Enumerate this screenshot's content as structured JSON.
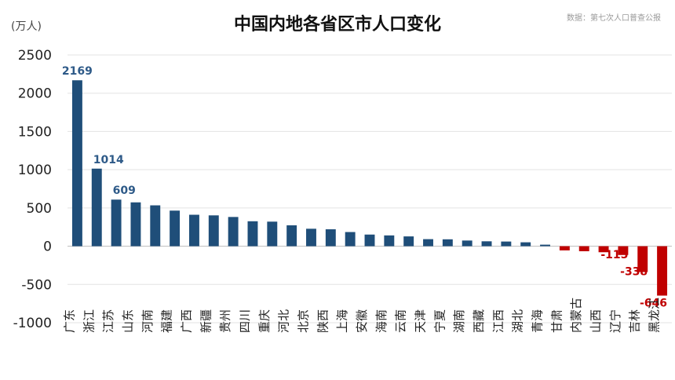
{
  "chart_data": {
    "type": "bar",
    "title": "中国内地各省区市人口变化",
    "source": "数据：第七次人口普查公报",
    "yunit": "(万人)",
    "ylim": [
      -1000,
      2500
    ],
    "yticks": [
      2500,
      2000,
      1500,
      1000,
      500,
      0,
      -500,
      -1000
    ],
    "grid": true,
    "colors": {
      "positive": "#1f4e79",
      "negative": "#c00000",
      "positive_label": "#2e5a88",
      "negative_label": "#c00000"
    },
    "categories": [
      "广东",
      "浙江",
      "江苏",
      "山东",
      "河南",
      "福建",
      "广西",
      "新疆",
      "贵州",
      "四川",
      "重庆",
      "河北",
      "北京",
      "陕西",
      "上海",
      "安徽",
      "海南",
      "云南",
      "天津",
      "宁夏",
      "湖南",
      "西藏",
      "江西",
      "湖北",
      "青海",
      "甘肃",
      "内蒙古",
      "山西",
      "辽宁",
      "吉林",
      "黑龙江"
    ],
    "values": [
      2169,
      1014,
      609,
      573,
      534,
      465,
      411,
      403,
      382,
      326,
      321,
      273,
      228,
      221,
      185,
      152,
      141,
      128,
      92,
      90,
      74,
      64,
      61,
      51,
      20,
      -55,
      -66,
      -79,
      -115,
      -338,
      -646
    ],
    "data_labels": [
      {
        "category": "广东",
        "text": "2169"
      },
      {
        "category": "浙江",
        "text": "1014"
      },
      {
        "category": "江苏",
        "text": "609"
      },
      {
        "category": "辽宁",
        "text": "-115"
      },
      {
        "category": "吉林",
        "text": "-338"
      },
      {
        "category": "黑龙江",
        "text": "-646"
      }
    ]
  }
}
